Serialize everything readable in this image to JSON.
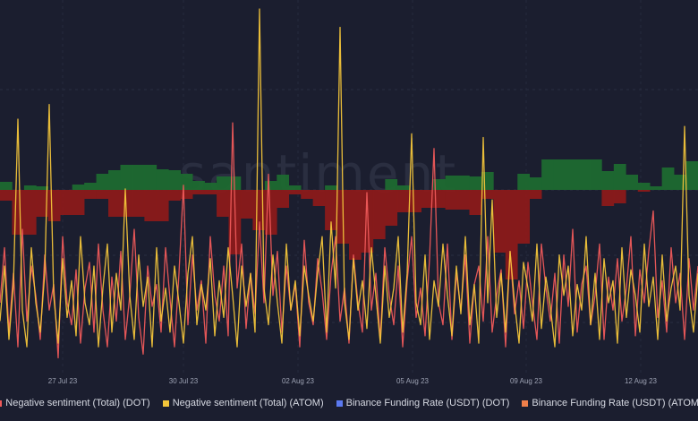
{
  "watermark": "santiment",
  "colors": {
    "background": "#1b1e2f",
    "positive_bar": "#1e6a30",
    "negative_bar": "#8b1a1a",
    "dot_sentiment": "#ef5a5a",
    "atom_sentiment": "#f3c53a",
    "dot_funding": "#5b79f0",
    "atom_funding": "#f07f4a"
  },
  "chart_data": {
    "type": "line+bar",
    "x_tick_labels": [
      "27 Jul 23",
      "30 Jul 23",
      "02 Aug 23",
      "05 Aug 23",
      "09 Aug 23",
      "12 Aug 23"
    ],
    "grid": true,
    "legend_position": "bottom",
    "legend": [
      {
        "name": "Negative sentiment (Total) (DOT)",
        "color": "#ef5a5a"
      },
      {
        "name": "Negative sentiment (Total) (ATOM)",
        "color": "#f3c53a"
      },
      {
        "name": "Binance Funding Rate (USDT) (DOT)",
        "color": "#5b79f0"
      },
      {
        "name": "Binance Funding Rate (USDT) (ATOM)",
        "color": "#f07f4a"
      }
    ],
    "series": [
      {
        "name": "Negative sentiment (Total) (DOT)",
        "type": "line",
        "values": [
          20,
          35,
          12,
          28,
          8,
          40,
          15,
          30,
          22,
          10,
          33,
          18,
          25,
          5,
          38,
          20,
          14,
          29,
          9,
          24,
          31,
          12,
          36,
          18,
          8,
          27,
          15,
          34,
          10,
          22,
          40,
          16,
          6,
          30,
          19,
          25,
          12,
          35,
          21,
          8,
          28,
          52,
          14,
          33,
          18,
          26,
          9,
          38,
          22,
          15,
          30,
          11,
          69,
          24,
          36,
          13,
          28,
          17,
          42,
          20,
          55,
          22,
          34,
          12,
          30,
          18,
          25,
          8,
          37,
          20,
          14,
          32,
          23,
          10,
          28,
          38,
          15,
          24,
          9,
          33,
          20,
          12,
          50,
          18,
          28,
          10,
          35,
          22,
          14,
          30,
          8,
          26,
          38,
          16,
          24,
          11,
          32,
          62,
          20,
          14,
          36,
          10,
          28,
          18,
          33,
          9,
          25,
          30,
          15,
          38,
          12,
          22,
          29,
          8,
          34,
          17,
          26,
          13,
          31,
          20,
          10,
          36,
          24,
          15,
          28,
          9,
          33,
          19,
          40,
          12,
          25,
          30,
          14,
          22,
          36,
          10,
          27,
          18,
          32,
          15,
          24,
          38,
          11,
          29,
          20,
          34,
          45,
          16,
          26,
          12,
          35,
          20,
          28,
          10,
          32,
          18,
          30
        ]
      },
      {
        "name": "Negative sentiment (Total) (ATOM)",
        "type": "line",
        "values": [
          15,
          30,
          10,
          25,
          70,
          18,
          8,
          35,
          20,
          12,
          28,
          74,
          22,
          9,
          32,
          16,
          26,
          11,
          38,
          20,
          14,
          30,
          8,
          24,
          36,
          12,
          28,
          18,
          51,
          22,
          10,
          33,
          19,
          27,
          8,
          35,
          15,
          24,
          12,
          30,
          20,
          9,
          28,
          38,
          14,
          25,
          18,
          32,
          11,
          26,
          16,
          35,
          22,
          8,
          30,
          19,
          28,
          12,
          100,
          24,
          14,
          33,
          20,
          9,
          36,
          18,
          26,
          11,
          30,
          22,
          15,
          28,
          38,
          12,
          42,
          24,
          95,
          20,
          10,
          32,
          18,
          26,
          13,
          35,
          22,
          9,
          30,
          16,
          24,
          38,
          12,
          28,
          66,
          20,
          14,
          33,
          10,
          26,
          19,
          36,
          22,
          11,
          30,
          17,
          38,
          14,
          25,
          9,
          65,
          20,
          48,
          16,
          28,
          12,
          34,
          20,
          9,
          31,
          24,
          15,
          36,
          13,
          27,
          19,
          8,
          33,
          22,
          30,
          11,
          25,
          18,
          38,
          14,
          28,
          10,
          32,
          20,
          26,
          9,
          35,
          16,
          29,
          22,
          12,
          36,
          19,
          27,
          10,
          33,
          15,
          24,
          30,
          18,
          68,
          22,
          12,
          28
        ]
      },
      {
        "name": "Binance Funding Rate (USDT) (DOT)",
        "type": "bar",
        "values": [
          -0.0048,
          -0.02,
          -0.02,
          -0.012,
          -0.014,
          -0.0112,
          -0.0112,
          -0.004,
          -0.004,
          -0.012,
          -0.012,
          -0.012,
          -0.014,
          -0.014,
          -0.0048,
          -0.004,
          -0.002,
          -0.002,
          -0.012,
          -0.0288,
          -0.0128,
          -0.018,
          -0.02,
          -0.008,
          -0.002,
          -0.004,
          -0.0072,
          -0.018,
          -0.024,
          -0.0312,
          -0.028,
          -0.022,
          -0.016,
          -0.01,
          -0.01,
          -0.008,
          -0.008,
          -0.0088,
          -0.0088,
          -0.0112,
          -0.004,
          -0.028,
          -0.04,
          -0.024,
          -0.004,
          0,
          0,
          0,
          0,
          0,
          -0.0072,
          -0.006,
          0,
          -0.0008,
          0,
          0,
          0,
          0
        ]
      },
      {
        "name": "Binance Funding Rate (USDT) (ATOM)",
        "type": "bar",
        "values": [
          0.0036,
          0,
          0.002,
          0.0016,
          0,
          0,
          0.0024,
          0.0032,
          0.0072,
          0.0088,
          0.0112,
          0.0112,
          0.0112,
          0.0092,
          0.0088,
          0.0072,
          0.004,
          0.0032,
          0.006,
          0.006,
          0,
          0,
          0.004,
          0.0068,
          0.002,
          0,
          0,
          0.002,
          0,
          0,
          0,
          0,
          0.0048,
          0.002,
          0,
          0,
          0.0048,
          0.0064,
          0.0064,
          0.006,
          0.008,
          0,
          0,
          0.0072,
          0.0056,
          0.0136,
          0.0136,
          0.0136,
          0.0136,
          0.0136,
          0.0084,
          0.0116,
          0.0068,
          0.0032,
          0.0016,
          0.01,
          0.0068,
          0.0128
        ]
      }
    ]
  }
}
